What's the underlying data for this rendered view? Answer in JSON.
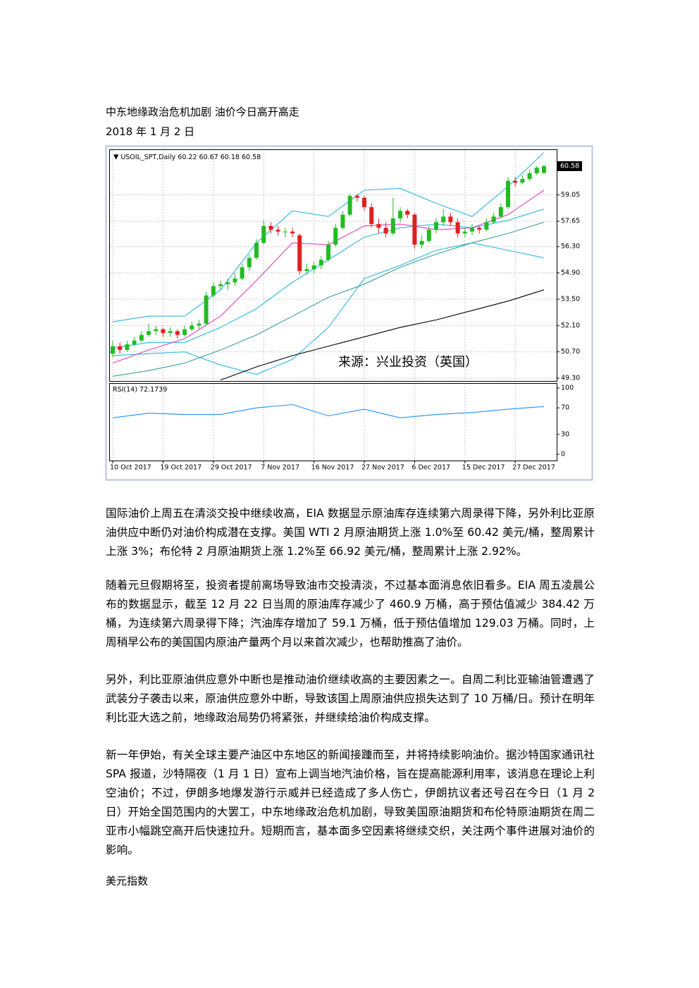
{
  "document": {
    "title": "中东地缘政治危机加剧  油价今日高开高走",
    "date": "2018 年 1 月 2 日",
    "paragraphs": [
      "国际油价上周五在清淡交投中继续收高，EIA 数据显示原油库存连续第六周录得下降，另外利比亚原油供应中断仍对油价构成潜在支撑。美国 WTI 2 月原油期货上涨 1.0%至 60.42 美元/桶，整周累计上涨 3%；布伦特 2 月原油期货上涨 1.2%至 66.92 美元/桶，整周累计上涨 2.92%。",
      "随着元旦假期将至，投资者提前离场导致油市交投清淡，不过基本面消息依旧看多。EIA 周五凌晨公布的数据显示，截至 12 月 22 日当周的原油库存减少了 460.9 万桶，高于预估值减少 384.42 万桶，为连续第六周录得下降；汽油库存增加了 59.1 万桶，低于预估值增加 129.03 万桶。同时，上周稍早公布的美国国内原油产量两个月以来首次减少，也帮助推高了油价。",
      "另外，利比亚原油供应意外中断也是推动油价继续收高的主要因素之一。自周二利比亚输油管遭遇了武装分子袭击以来，原油供应意外中断，导致该国上周原油供应损失达到了 10 万桶/日。预计在明年利比亚大选之前，地缘政治局势仍将紧张，并继续给油价构成支撑。",
      "新一年伊始，有关全球主要产油区中东地区的新闻接踵而至，并将持续影响油价。据沙特国家通讯社 SPA 报道，沙特隔夜（1 月 1 日）宣布上调当地汽油价格，旨在提高能源利用率，该消息在理论上利空油价；不过，伊朗多地爆发游行示威并已经造成了多人伤亡，伊朗抗议者还号召在今日（1 月 2 日）开始全国范围内的大罢工，中东地缘政治危机加剧，导致美国原油期货和布伦特原油期货在周二亚市小幅跳空高开后快速拉升。短期而言，基本面多空因素将继续交织，关注两个事件进展对油价的影响。"
    ],
    "footer": "美元指数"
  },
  "chart_data": {
    "type": "candlestick",
    "symbol": "USOIL_SPT,Daily",
    "ohlc_header": [
      60.22,
      60.67,
      60.18,
      60.58
    ],
    "last_price": 60.58,
    "watermark": "来源：兴业投资（英国）",
    "up_color": "#22bb22",
    "down_color": "#e02020",
    "ylim": [
      49.15,
      61.44
    ],
    "yticks": [
      {
        "value": 49.3,
        "label": "49.30"
      },
      {
        "value": 50.7,
        "label": "50.70"
      },
      {
        "value": 52.1,
        "label": "52.10"
      },
      {
        "value": 53.5,
        "label": "53.50"
      },
      {
        "value": 54.9,
        "label": "54.90"
      },
      {
        "value": 56.3,
        "label": "56.30"
      },
      {
        "value": 57.65,
        "label": "57.65"
      },
      {
        "value": 59.05,
        "label": "59.05"
      }
    ],
    "xlim": [
      0,
      60
    ],
    "xticks": [
      {
        "value": 0,
        "label": "10 Oct 2017"
      },
      {
        "value": 7,
        "label": "19 Oct 2017"
      },
      {
        "value": 14,
        "label": "29 Oct 2017"
      },
      {
        "value": 21,
        "label": "7 Nov 2017"
      },
      {
        "value": 28,
        "label": "16 Nov 2017"
      },
      {
        "value": 35,
        "label": "27 Nov 2017"
      },
      {
        "value": 42,
        "label": "6 Dec 2017"
      },
      {
        "value": 49,
        "label": "15 Dec 2017"
      },
      {
        "value": 56,
        "label": "27 Dec 2017"
      }
    ],
    "grid": true,
    "candles": [
      [
        50.6,
        51.3,
        50.4,
        51.0
      ],
      [
        51.0,
        51.2,
        50.6,
        50.8
      ],
      [
        50.8,
        51.3,
        50.7,
        51.1
      ],
      [
        51.1,
        51.5,
        51.0,
        51.3
      ],
      [
        51.3,
        51.8,
        51.2,
        51.6
      ],
      [
        51.6,
        52.2,
        51.5,
        51.8
      ],
      [
        51.8,
        52.1,
        51.6,
        51.9
      ],
      [
        51.9,
        52.0,
        51.5,
        51.7
      ],
      [
        51.7,
        52.0,
        51.5,
        51.8
      ],
      [
        51.8,
        51.9,
        51.4,
        51.6
      ],
      [
        51.6,
        52.1,
        51.5,
        51.9
      ],
      [
        51.9,
        52.3,
        51.8,
        52.1
      ],
      [
        52.1,
        52.4,
        51.9,
        52.2
      ],
      [
        52.2,
        53.9,
        52.1,
        53.7
      ],
      [
        53.7,
        54.4,
        53.6,
        54.2
      ],
      [
        54.2,
        54.5,
        54.0,
        54.3
      ],
      [
        54.3,
        54.6,
        54.0,
        54.4
      ],
      [
        54.4,
        54.9,
        54.2,
        54.6
      ],
      [
        54.6,
        55.4,
        54.5,
        55.2
      ],
      [
        55.2,
        55.9,
        55.0,
        55.7
      ],
      [
        55.7,
        56.7,
        55.6,
        56.5
      ],
      [
        56.5,
        57.7,
        56.4,
        57.4
      ],
      [
        57.4,
        57.6,
        57.0,
        57.2
      ],
      [
        57.2,
        57.4,
        56.9,
        57.1
      ],
      [
        57.1,
        57.3,
        56.8,
        57.1
      ],
      [
        57.1,
        57.3,
        56.8,
        57.0
      ],
      [
        56.9,
        57.0,
        54.8,
        55.0
      ],
      [
        55.0,
        55.4,
        54.8,
        55.1
      ],
      [
        55.1,
        55.5,
        54.9,
        55.3
      ],
      [
        55.3,
        55.8,
        55.1,
        55.6
      ],
      [
        55.6,
        56.6,
        55.5,
        56.4
      ],
      [
        56.4,
        57.5,
        56.3,
        57.3
      ],
      [
        57.3,
        58.2,
        57.2,
        58.0
      ],
      [
        58.0,
        59.1,
        57.9,
        59.0
      ],
      [
        59.0,
        59.1,
        58.7,
        58.9
      ],
      [
        58.9,
        59.0,
        58.2,
        58.4
      ],
      [
        58.4,
        58.6,
        57.3,
        57.5
      ],
      [
        57.5,
        57.8,
        57.0,
        57.3
      ],
      [
        57.3,
        57.6,
        56.8,
        57.0
      ],
      [
        57.0,
        58.9,
        56.9,
        57.8
      ],
      [
        57.8,
        58.4,
        57.6,
        58.2
      ],
      [
        58.2,
        58.3,
        57.8,
        58.0
      ],
      [
        58.0,
        58.1,
        56.2,
        56.4
      ],
      [
        56.4,
        56.9,
        56.2,
        56.6
      ],
      [
        56.6,
        57.4,
        56.5,
        57.2
      ],
      [
        57.2,
        57.8,
        57.0,
        57.6
      ],
      [
        57.6,
        58.3,
        57.4,
        57.9
      ],
      [
        57.9,
        58.1,
        57.4,
        57.6
      ],
      [
        57.6,
        57.8,
        56.8,
        57.0
      ],
      [
        57.0,
        57.3,
        56.8,
        57.1
      ],
      [
        57.1,
        57.5,
        56.9,
        57.3
      ],
      [
        57.3,
        57.4,
        57.0,
        57.2
      ],
      [
        57.2,
        57.8,
        57.1,
        57.6
      ],
      [
        57.6,
        58.1,
        57.5,
        57.9
      ],
      [
        57.9,
        58.6,
        57.8,
        58.4
      ],
      [
        58.4,
        60.0,
        58.3,
        59.8
      ],
      [
        59.8,
        60.0,
        59.5,
        59.7
      ],
      [
        59.7,
        60.1,
        59.6,
        59.9
      ],
      [
        59.9,
        60.4,
        59.8,
        60.2
      ],
      [
        60.2,
        60.6,
        60.1,
        60.5
      ],
      [
        60.22,
        60.67,
        60.18,
        60.58
      ]
    ],
    "lines": [
      {
        "color": "#2ab7e0",
        "x": [
          0,
          5,
          10,
          15,
          20,
          25,
          30,
          35,
          40,
          45,
          50,
          55,
          60
        ],
        "values": [
          52.3,
          52.6,
          52.6,
          54.0,
          56.5,
          58.2,
          57.9,
          59.3,
          59.4,
          58.6,
          57.9,
          59.5,
          61.3
        ]
      },
      {
        "color": "#2ab7e0",
        "x": [
          0,
          5,
          10,
          15,
          20,
          25,
          30,
          35,
          40,
          45,
          50,
          55,
          60
        ],
        "values": [
          50.9,
          51.2,
          51.2,
          52.0,
          53.0,
          54.4,
          55.6,
          56.8,
          57.3,
          57.5,
          57.3,
          57.7,
          58.3
        ]
      },
      {
        "color": "#2ab7e0",
        "x": [
          0,
          5,
          10,
          15,
          20,
          25,
          30,
          35,
          40,
          45,
          50,
          55,
          60
        ],
        "values": [
          50.5,
          50.6,
          50.7,
          50.0,
          49.5,
          50.3,
          52.0,
          54.6,
          55.3,
          56.1,
          56.5,
          56.1,
          55.7
        ]
      },
      {
        "color": "#e040c0",
        "x": [
          0,
          5,
          10,
          15,
          20,
          25,
          30,
          35,
          40,
          45,
          50,
          55,
          60
        ],
        "values": [
          50.1,
          50.8,
          51.4,
          52.6,
          54.5,
          56.5,
          56.4,
          57.4,
          57.5,
          57.2,
          57.3,
          58.0,
          59.3
        ]
      },
      {
        "color": "#3aa090",
        "x": [
          0,
          5,
          10,
          15,
          20,
          25,
          30,
          35,
          40,
          45,
          50,
          55,
          60
        ],
        "values": [
          49.4,
          49.7,
          50.1,
          50.8,
          51.6,
          52.6,
          53.6,
          54.3,
          55.2,
          55.9,
          56.5,
          57.0,
          57.6
        ]
      },
      {
        "color": "#000000",
        "x": [
          15,
          20,
          25,
          30,
          35,
          40,
          45,
          50,
          55,
          60
        ],
        "values": [
          49.2,
          49.9,
          50.5,
          51.0,
          51.5,
          52.0,
          52.4,
          52.9,
          53.4,
          54.0
        ]
      }
    ],
    "rsi": {
      "name": "RSI(14)",
      "current": 72.1739,
      "color": "#1e90ff",
      "ylim": [
        0,
        100
      ],
      "yticks": [
        0,
        30,
        70,
        100
      ],
      "x": [
        0,
        5,
        10,
        15,
        20,
        25,
        30,
        35,
        40,
        45,
        50,
        55,
        60
      ],
      "values": [
        55,
        62,
        60,
        60,
        70,
        75,
        58,
        68,
        55,
        60,
        63,
        68,
        72
      ]
    }
  }
}
